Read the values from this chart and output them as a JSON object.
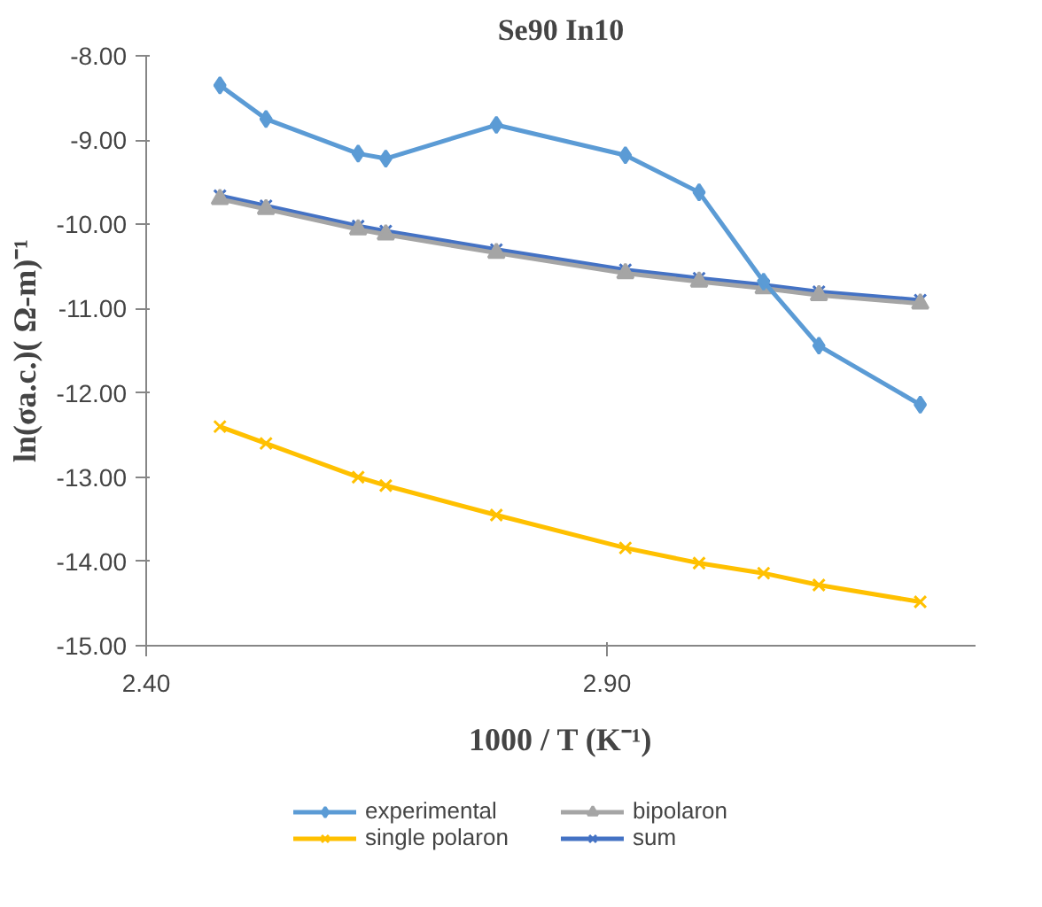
{
  "chart_data": {
    "type": "line",
    "title": "Se90 In10",
    "xlabel": "1000 / T (K⁻¹)",
    "ylabel": "ln(σa.c.)( Ω-m)⁻¹",
    "x": [
      2.48,
      2.53,
      2.63,
      2.66,
      2.78,
      2.92,
      3.0,
      3.07,
      3.13,
      3.24
    ],
    "series": [
      {
        "name": "experimental",
        "color": "#5b9bd5",
        "marker": "diamond",
        "values": [
          -8.35,
          -8.75,
          -9.16,
          -9.22,
          -8.82,
          -9.18,
          -9.62,
          -10.68,
          -11.44,
          -12.14
        ]
      },
      {
        "name": "bipolaron",
        "color": "#a5a5a5",
        "marker": "triangle",
        "values": [
          -9.7,
          -9.82,
          -10.06,
          -10.12,
          -10.34,
          -10.58,
          -10.68,
          -10.76,
          -10.84,
          -10.94
        ]
      },
      {
        "name": "single polaron",
        "color": "#ffc000",
        "marker": "cross",
        "values": [
          -12.4,
          -12.6,
          -13.0,
          -13.1,
          -13.45,
          -13.84,
          -14.02,
          -14.14,
          -14.28,
          -14.48
        ]
      },
      {
        "name": "sum",
        "color": "#4472c4",
        "marker": "cross",
        "values": [
          -9.66,
          -9.78,
          -10.02,
          -10.08,
          -10.3,
          -10.54,
          -10.64,
          -10.72,
          -10.8,
          -10.9
        ]
      }
    ],
    "xlim": [
      2.4,
      3.3
    ],
    "xticks": [
      {
        "value": 2.4,
        "label": "2.40"
      },
      {
        "value": 2.9,
        "label": "2.90"
      }
    ],
    "ylim": [
      -15,
      -8
    ],
    "yticks": [
      {
        "value": -15,
        "label": "-15.00"
      },
      {
        "value": -14,
        "label": "-14.00"
      },
      {
        "value": -13,
        "label": "-13.00"
      },
      {
        "value": -12,
        "label": "-12.00"
      },
      {
        "value": -11,
        "label": "-11.00"
      },
      {
        "value": -10,
        "label": "-10.00"
      },
      {
        "value": -9,
        "label": "-9.00"
      },
      {
        "value": -8,
        "label": "-8.00"
      }
    ],
    "grid": false,
    "legend": "bottom"
  }
}
